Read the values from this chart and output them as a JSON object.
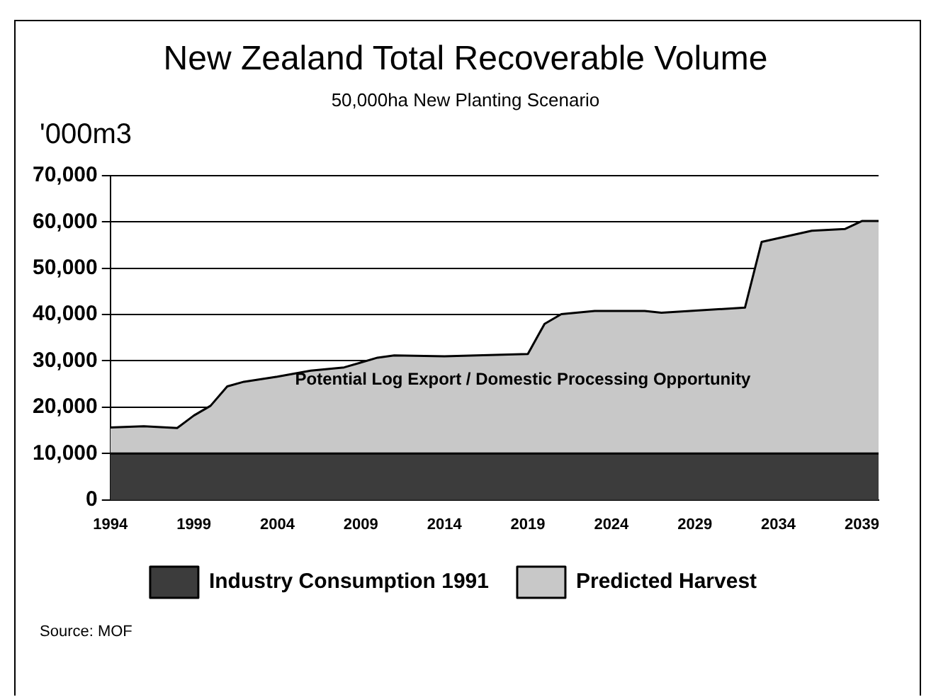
{
  "chart_data": {
    "type": "area",
    "title": "New Zealand Total Recoverable Volume",
    "subtitle": "50,000ha New Planting Scenario",
    "ylabel": "'000m3",
    "x": [
      1994,
      1996,
      1998,
      1999,
      2000,
      2001,
      2002,
      2004,
      2006,
      2008,
      2010,
      2011,
      2014,
      2019,
      2020,
      2021,
      2023,
      2026,
      2027,
      2032,
      2033,
      2035,
      2036,
      2038,
      2039,
      2040
    ],
    "series": [
      {
        "name": "Industry Consumption 1991",
        "color": "#3c3c3c",
        "values": [
          10000,
          10000,
          10000,
          10000,
          10000,
          10000,
          10000,
          10000,
          10000,
          10000,
          10000,
          10000,
          10000,
          10000,
          10000,
          10000,
          10000,
          10000,
          10000,
          10000,
          10000,
          10000,
          10000,
          10000,
          10000,
          10000
        ]
      },
      {
        "name": "Predicted Harvest",
        "color": "#c8c8c8",
        "values": [
          15600,
          15900,
          15500,
          18200,
          20300,
          24500,
          25500,
          26600,
          27900,
          28600,
          30700,
          31200,
          31000,
          31500,
          38000,
          40100,
          40800,
          40800,
          40400,
          41500,
          55700,
          57300,
          58100,
          58500,
          60200,
          60200
        ]
      }
    ],
    "xlim": [
      1994,
      2040
    ],
    "xticks": [
      1994,
      1999,
      2004,
      2009,
      2014,
      2019,
      2024,
      2029,
      2034,
      2039
    ],
    "ylim": [
      0,
      70000
    ],
    "yticks": [
      0,
      {
        "value": 10000,
        "label": "10,000"
      },
      {
        "value": 20000,
        "label": "20,000"
      },
      {
        "value": 30000,
        "label": "30,000"
      },
      {
        "value": 40000,
        "label": "40,000"
      },
      {
        "value": 50000,
        "label": "50,000"
      },
      {
        "value": 60000,
        "label": "60,000"
      },
      {
        "value": 70000,
        "label": "70,000"
      }
    ],
    "grid": "y",
    "legend": "bottom",
    "marker": "none",
    "annotations": [
      "Potential Log Export / Domestic Processing Opportunity",
      "Source: MOF"
    ]
  }
}
